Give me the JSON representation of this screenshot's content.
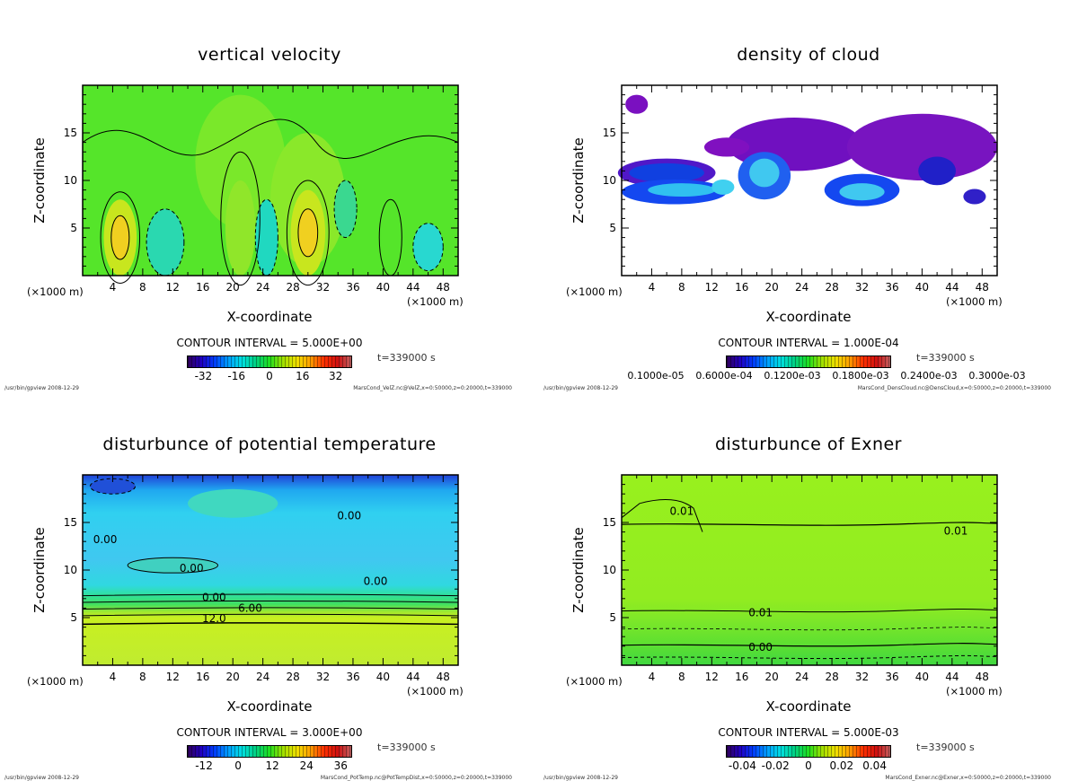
{
  "chart_data": [
    {
      "type": "heatmap",
      "title": "vertical velocity",
      "xlabel": "X-coordinate",
      "ylabel": "Z-coordinate",
      "x_unit": "(×1000 m)",
      "xlim": [
        0,
        50
      ],
      "ylim": [
        0,
        20
      ],
      "xticks": [
        "4",
        "8",
        "12",
        "16",
        "20",
        "24",
        "28",
        "32",
        "36",
        "40",
        "44",
        "48"
      ],
      "yticks": [
        "5",
        "10",
        "15"
      ],
      "contour_interval": "CONTOUR INTERVAL = 5.000E+00",
      "colorbar_ticks": [
        "-32",
        "-16",
        "0",
        "16",
        "32"
      ],
      "colorbar_range": [
        -40,
        40
      ],
      "time": "t=339000 s",
      "footer_left": "/usr/bin/gpview  2008-12-29",
      "footer_right": "MarsCond_VelZ.nc@VelZ,x=0:50000,z=0:20000,t=339000",
      "contour_labels": []
    },
    {
      "type": "heatmap",
      "title": "density of cloud",
      "xlabel": "X-coordinate",
      "ylabel": "Z-coordinate",
      "x_unit": "(×1000 m)",
      "xlim": [
        0,
        50
      ],
      "ylim": [
        0,
        20
      ],
      "xticks": [
        "4",
        "8",
        "12",
        "16",
        "20",
        "24",
        "28",
        "32",
        "36",
        "40",
        "44",
        "48"
      ],
      "yticks": [
        "5",
        "10",
        "15"
      ],
      "contour_interval": "CONTOUR INTERVAL = 1.000E-04",
      "colorbar_ticks": [
        "0.1000e-05",
        "0.6000e-04",
        "0.1200e-03",
        "0.1800e-03",
        "0.2400e-03",
        "0.3000e-03"
      ],
      "colorbar_range": [
        0,
        0.0003
      ],
      "time": "t=339000 s",
      "footer_left": "/usr/bin/gpview  2008-12-29",
      "footer_right": "MarsCond_DensCloud.nc@DensCloud,x=0:50000,z=0:20000,t=339000",
      "contour_labels": []
    },
    {
      "type": "heatmap",
      "title": "disturbunce of potential temperature",
      "xlabel": "X-coordinate",
      "ylabel": "Z-coordinate",
      "x_unit": "(×1000 m)",
      "xlim": [
        0,
        50
      ],
      "ylim": [
        0,
        20
      ],
      "xticks": [
        "4",
        "8",
        "12",
        "16",
        "20",
        "24",
        "28",
        "32",
        "36",
        "40",
        "44",
        "48"
      ],
      "yticks": [
        "5",
        "10",
        "15"
      ],
      "contour_interval": "CONTOUR INTERVAL = 3.000E+00",
      "colorbar_ticks": [
        "-12",
        "0",
        "12",
        "24",
        "36"
      ],
      "colorbar_range": [
        -18,
        40
      ],
      "time": "t=339000 s",
      "footer_left": "/usr/bin/gpview  2008-12-29",
      "footer_right": "MarsCond_PotTemp.nc@PotTempDist,x=0:50000,z=0:20000,t=339000",
      "contour_labels": [
        {
          "text": "0.00",
          "x": 3,
          "z": 13.2
        },
        {
          "text": "0.00",
          "x": 14.5,
          "z": 10.2
        },
        {
          "text": "0.00",
          "x": 35.5,
          "z": 15.7
        },
        {
          "text": "0.00",
          "x": 39,
          "z": 8.8
        },
        {
          "text": "0.00",
          "x": 17.5,
          "z": 7.1
        },
        {
          "text": "6.00",
          "x": 18,
          "z": 6.0
        },
        {
          "text": "12.0",
          "x": 17.5,
          "z": 4.9
        }
      ]
    },
    {
      "type": "heatmap",
      "title": "disturbunce of Exner",
      "xlabel": "X-coordinate",
      "ylabel": "Z-coordinate",
      "x_unit": "(×1000 m)",
      "xlim": [
        0,
        50
      ],
      "ylim": [
        0,
        20
      ],
      "xticks": [
        "4",
        "8",
        "12",
        "16",
        "20",
        "24",
        "28",
        "32",
        "36",
        "40",
        "44",
        "48"
      ],
      "yticks": [
        "5",
        "10",
        "15"
      ],
      "contour_interval": "CONTOUR INTERVAL = 5.000E-03",
      "colorbar_ticks": [
        "-0.04",
        "-0.02",
        "0",
        "0.02",
        "0.04"
      ],
      "colorbar_range": [
        -0.05,
        0.05
      ],
      "time": "t=339000 s",
      "footer_left": "/usr/bin/gpview  2008-12-29",
      "footer_right": "MarsCond_Exner.nc@Exner,x=0:50000,z=0:20000,t=339000",
      "contour_labels": [
        {
          "text": "0.01",
          "x": 8,
          "z": 16.2
        },
        {
          "text": "0.01",
          "x": 44.5,
          "z": 14.1
        },
        {
          "text": "0.01",
          "x": 18.5,
          "z": 5.5
        },
        {
          "text": "0.00",
          "x": 18.5,
          "z": 1.9
        }
      ]
    }
  ]
}
